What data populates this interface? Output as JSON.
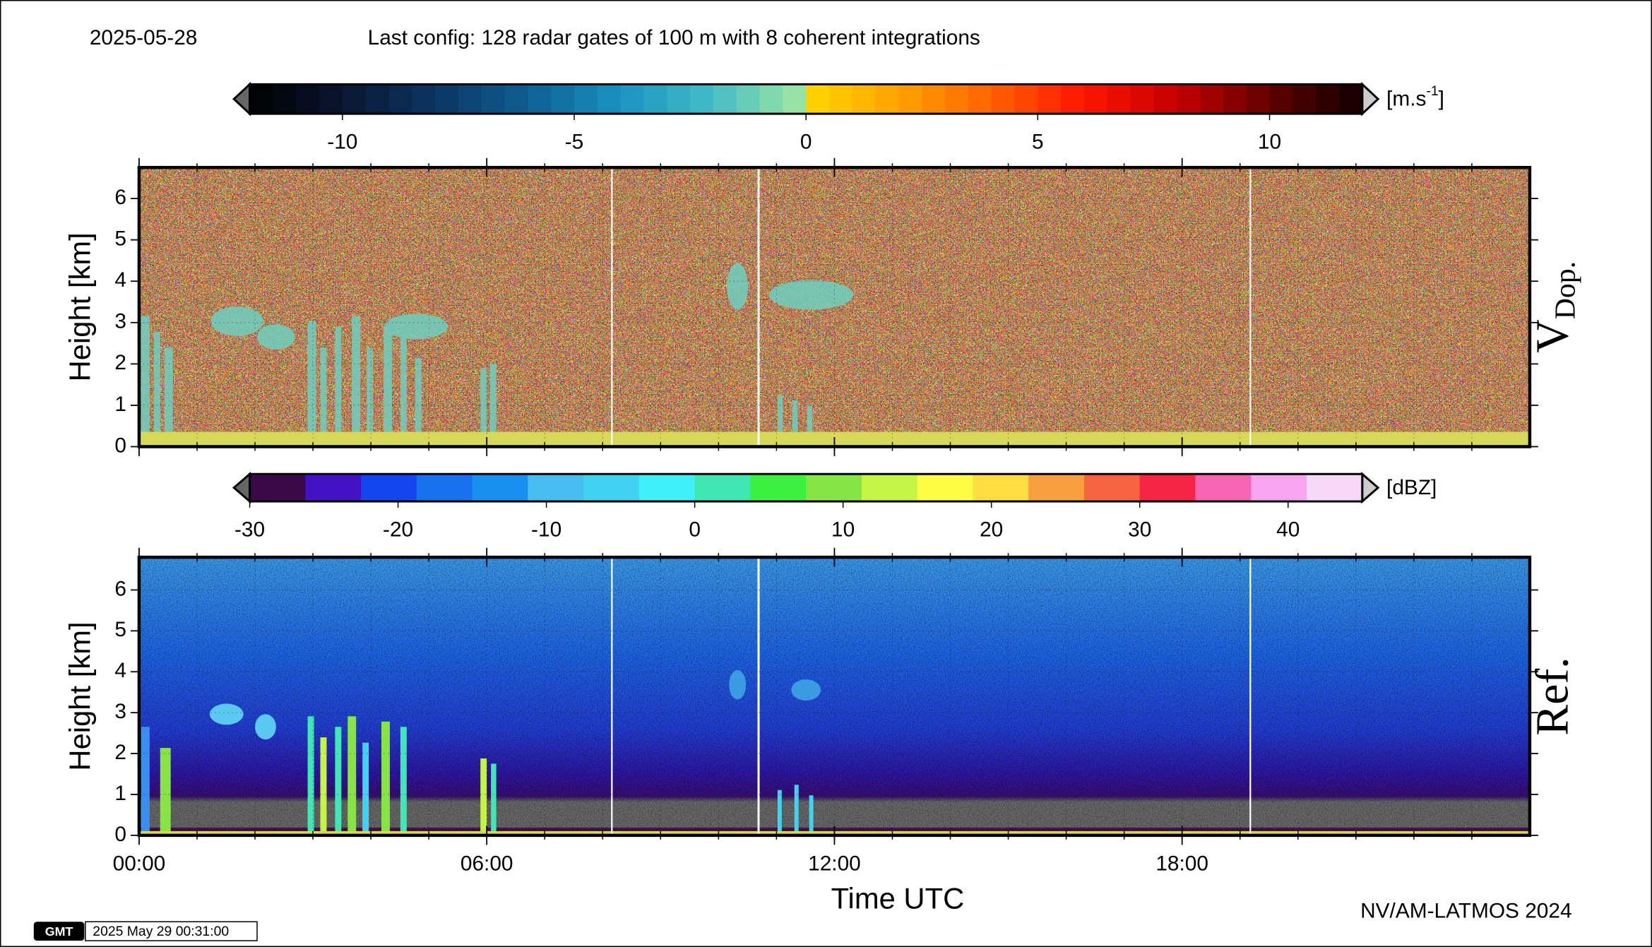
{
  "header": {
    "date": "2025-05-28",
    "config": "Last config: 128 radar gates of 100 m with 8 coherent integrations"
  },
  "chart_data": [
    {
      "type": "heatmap",
      "title": "V",
      "title_sub": "Dop.",
      "ylabel": "Height [km]",
      "ylim": [
        0,
        6.75
      ],
      "yticks": [
        0,
        1,
        2,
        3,
        4,
        5,
        6
      ],
      "colorbar": {
        "unit": "[m.s",
        "unit_sup": "-1",
        "unit_end": "]",
        "lim": [
          -12,
          12
        ],
        "ticks": [
          -10,
          -5,
          0,
          5,
          10
        ],
        "step": 0.5,
        "colors_negative": [
          "#000000",
          "#0a1530",
          "#0b3563",
          "#0d5e92",
          "#1a93c2",
          "#45bcc6",
          "#a2e9a0"
        ],
        "colors_positive": [
          "#ffd800",
          "#ffa200",
          "#ff6200",
          "#ff1400",
          "#c40000",
          "#600000",
          "#100000"
        ]
      }
    },
    {
      "type": "heatmap",
      "title": "Ref.",
      "ylabel": "Height [km]",
      "xlabel": "Time UTC",
      "xlim": [
        0,
        24
      ],
      "xticks": [
        {
          "value": 0,
          "label": "00:00"
        },
        {
          "value": 6,
          "label": "06:00"
        },
        {
          "value": 12,
          "label": "12:00"
        },
        {
          "value": 18,
          "label": "18:00"
        }
      ],
      "xminor": 1,
      "ylim": [
        0,
        6.8
      ],
      "yticks": [
        0,
        1,
        2,
        3,
        4,
        5,
        6
      ],
      "colorbar": {
        "unit": "[dBZ]",
        "lim": [
          -30,
          45
        ],
        "ticks": [
          -30,
          -20,
          -10,
          0,
          10,
          20,
          30,
          40
        ],
        "colors": [
          "#3a0a48",
          "#4212c4",
          "#1446f0",
          "#1872f0",
          "#1890f0",
          "#48bef0",
          "#40d2f0",
          "#40f0f8",
          "#40e6b4",
          "#3cf040",
          "#86e444",
          "#c4f444",
          "#fffc44",
          "#ffdc40",
          "#f8a040",
          "#f86440",
          "#f82444",
          "#f864b4",
          "#f8a4f0",
          "#f8d8f8"
        ]
      }
    }
  ],
  "footer": {
    "credit": "NV/AM-LATMOS 2024",
    "timestamp": "2025 May 29 00:31:00"
  }
}
